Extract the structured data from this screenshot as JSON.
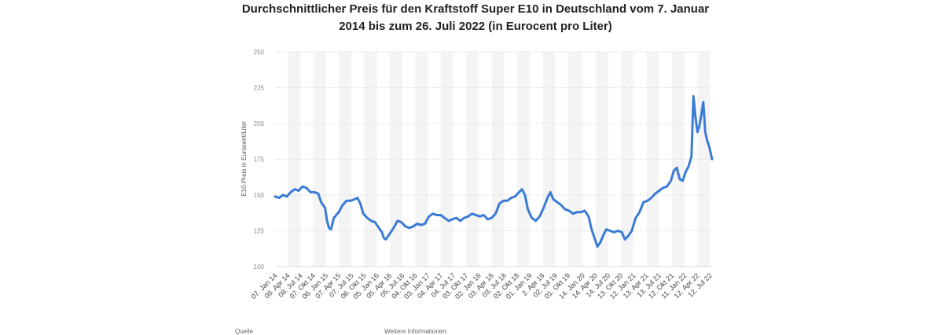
{
  "chart_data": {
    "type": "line",
    "title_line1": "Durchschnittlicher Preis für den Kraftstoff Super E10 in Deutschland vom 7. Januar",
    "title_line2": "2014 bis zum 26. Juli 2022 (in Eurocent pro Liter)",
    "ylabel": "E10-Preis in Eurocent/Liter",
    "xlabel": "",
    "ylim": [
      100,
      250
    ],
    "yticks": [
      100,
      125,
      150,
      175,
      200,
      225,
      250
    ],
    "xlim": [
      "2014-01-07",
      "2022-07-26"
    ],
    "grid": true,
    "xtick_labels": [
      {
        "label": "07. Jan 14",
        "date": "2014-01-07"
      },
      {
        "label": "08. Apr 14",
        "date": "2014-04-08"
      },
      {
        "label": "08. Jul 14",
        "date": "2014-07-08"
      },
      {
        "label": "07. Okt 14",
        "date": "2014-10-07"
      },
      {
        "label": "06. Jan 15",
        "date": "2015-01-06"
      },
      {
        "label": "07. Apr 15",
        "date": "2015-04-07"
      },
      {
        "label": "07. Jul 15",
        "date": "2015-07-07"
      },
      {
        "label": "06. Okt 15",
        "date": "2015-10-06"
      },
      {
        "label": "05. Jan 16",
        "date": "2016-01-05"
      },
      {
        "label": "05. Apr 16",
        "date": "2016-04-05"
      },
      {
        "label": "05. Jul 16",
        "date": "2016-07-05"
      },
      {
        "label": "04. Okt 16",
        "date": "2016-10-04"
      },
      {
        "label": "03. Jan 17",
        "date": "2017-01-03"
      },
      {
        "label": "04. Apr 17",
        "date": "2017-04-04"
      },
      {
        "label": "04. Jul 17",
        "date": "2017-07-04"
      },
      {
        "label": "03. Okt 17",
        "date": "2017-10-03"
      },
      {
        "label": "02. Jan 18",
        "date": "2018-01-02"
      },
      {
        "label": "03. Apr 18",
        "date": "2018-04-03"
      },
      {
        "label": "03. Jul 18",
        "date": "2018-07-03"
      },
      {
        "label": "02. Okt 18",
        "date": "2018-10-02"
      },
      {
        "label": "01. Jan 19",
        "date": "2019-01-01"
      },
      {
        "label": "2. Apr 19",
        "date": "2019-04-02"
      },
      {
        "label": "02. Jul 19",
        "date": "2019-07-02"
      },
      {
        "label": "01. Okt 19",
        "date": "2019-10-01"
      },
      {
        "label": "14. Jan 20",
        "date": "2020-01-14"
      },
      {
        "label": "14. Apr 20",
        "date": "2020-04-14"
      },
      {
        "label": "14. Jul 20",
        "date": "2020-07-14"
      },
      {
        "label": "13. Okt 20",
        "date": "2020-10-13"
      },
      {
        "label": "12. Jan 21",
        "date": "2021-01-12"
      },
      {
        "label": "13. Apr 21",
        "date": "2021-04-13"
      },
      {
        "label": "13. Jul 21",
        "date": "2021-07-13"
      },
      {
        "label": "12. Okt 21",
        "date": "2021-10-12"
      },
      {
        "label": "11. Jan 22",
        "date": "2022-01-11"
      },
      {
        "label": "12. Apr 22",
        "date": "2022-04-12"
      },
      {
        "label": "12. Jul 22",
        "date": "2022-07-12"
      }
    ],
    "series": [
      {
        "color": "#3a7bd5",
        "points": [
          [
            "2014-01-07",
            149
          ],
          [
            "2014-02-04",
            148
          ],
          [
            "2014-03-04",
            150
          ],
          [
            "2014-04-01",
            149
          ],
          [
            "2014-04-29",
            152
          ],
          [
            "2014-05-27",
            154
          ],
          [
            "2014-06-24",
            153
          ],
          [
            "2014-07-22",
            156
          ],
          [
            "2014-08-19",
            155
          ],
          [
            "2014-09-16",
            152
          ],
          [
            "2014-10-14",
            152
          ],
          [
            "2014-11-11",
            151
          ],
          [
            "2014-12-02",
            145
          ],
          [
            "2014-12-30",
            141
          ],
          [
            "2015-01-13",
            132
          ],
          [
            "2015-01-27",
            127
          ],
          [
            "2015-02-10",
            126
          ],
          [
            "2015-03-03",
            134
          ],
          [
            "2015-04-07",
            138
          ],
          [
            "2015-05-05",
            143
          ],
          [
            "2015-06-02",
            146
          ],
          [
            "2015-06-30",
            146
          ],
          [
            "2015-07-28",
            147
          ],
          [
            "2015-08-18",
            148
          ],
          [
            "2015-09-08",
            144
          ],
          [
            "2015-09-29",
            137
          ],
          [
            "2015-10-27",
            134
          ],
          [
            "2015-11-24",
            132
          ],
          [
            "2015-12-22",
            131
          ],
          [
            "2016-01-19",
            127
          ],
          [
            "2016-02-09",
            124
          ],
          [
            "2016-02-23",
            120
          ],
          [
            "2016-03-08",
            119
          ],
          [
            "2016-04-05",
            123
          ],
          [
            "2016-05-03",
            127
          ],
          [
            "2016-05-31",
            132
          ],
          [
            "2016-06-28",
            131
          ],
          [
            "2016-07-26",
            128
          ],
          [
            "2016-08-23",
            127
          ],
          [
            "2016-09-20",
            128
          ],
          [
            "2016-10-18",
            130
          ],
          [
            "2016-11-15",
            129
          ],
          [
            "2016-12-13",
            130
          ],
          [
            "2017-01-10",
            135
          ],
          [
            "2017-02-07",
            137
          ],
          [
            "2017-03-07",
            136
          ],
          [
            "2017-04-04",
            136
          ],
          [
            "2017-05-02",
            134
          ],
          [
            "2017-05-30",
            132
          ],
          [
            "2017-06-27",
            133
          ],
          [
            "2017-07-25",
            134
          ],
          [
            "2017-08-22",
            132
          ],
          [
            "2017-09-19",
            134
          ],
          [
            "2017-10-17",
            135
          ],
          [
            "2017-11-14",
            137
          ],
          [
            "2017-12-12",
            136
          ],
          [
            "2018-01-09",
            135
          ],
          [
            "2018-02-06",
            136
          ],
          [
            "2018-03-06",
            133
          ],
          [
            "2018-04-03",
            134
          ],
          [
            "2018-05-01",
            137
          ],
          [
            "2018-05-29",
            144
          ],
          [
            "2018-06-26",
            146
          ],
          [
            "2018-07-24",
            146
          ],
          [
            "2018-08-21",
            148
          ],
          [
            "2018-09-18",
            149
          ],
          [
            "2018-10-16",
            152
          ],
          [
            "2018-11-06",
            154
          ],
          [
            "2018-11-27",
            150
          ],
          [
            "2018-12-18",
            140
          ],
          [
            "2019-01-15",
            134
          ],
          [
            "2019-02-12",
            132
          ],
          [
            "2019-03-12",
            135
          ],
          [
            "2019-04-09",
            141
          ],
          [
            "2019-05-07",
            148
          ],
          [
            "2019-05-28",
            152
          ],
          [
            "2019-06-18",
            147
          ],
          [
            "2019-07-16",
            145
          ],
          [
            "2019-08-13",
            143
          ],
          [
            "2019-09-10",
            140
          ],
          [
            "2019-10-08",
            139
          ],
          [
            "2019-11-05",
            137
          ],
          [
            "2019-12-03",
            138
          ],
          [
            "2019-12-31",
            138
          ],
          [
            "2020-01-28",
            139
          ],
          [
            "2020-02-25",
            135
          ],
          [
            "2020-03-17",
            126
          ],
          [
            "2020-04-07",
            120
          ],
          [
            "2020-04-28",
            114
          ],
          [
            "2020-05-19",
            117
          ],
          [
            "2020-06-09",
            122
          ],
          [
            "2020-06-30",
            126
          ],
          [
            "2020-07-28",
            125
          ],
          [
            "2020-08-25",
            124
          ],
          [
            "2020-09-22",
            125
          ],
          [
            "2020-10-20",
            124
          ],
          [
            "2020-11-10",
            119
          ],
          [
            "2020-12-01",
            121
          ],
          [
            "2020-12-29",
            125
          ],
          [
            "2021-01-26",
            134
          ],
          [
            "2021-02-23",
            138
          ],
          [
            "2021-03-23",
            145
          ],
          [
            "2021-04-20",
            146
          ],
          [
            "2021-05-18",
            148
          ],
          [
            "2021-06-15",
            151
          ],
          [
            "2021-07-13",
            153
          ],
          [
            "2021-08-10",
            155
          ],
          [
            "2021-09-07",
            156
          ],
          [
            "2021-10-05",
            160
          ],
          [
            "2021-10-26",
            167
          ],
          [
            "2021-11-16",
            169
          ],
          [
            "2021-12-07",
            161
          ],
          [
            "2021-12-28",
            160
          ],
          [
            "2022-01-18",
            166
          ],
          [
            "2022-02-08",
            170
          ],
          [
            "2022-03-01",
            177
          ],
          [
            "2022-03-15",
            219
          ],
          [
            "2022-03-29",
            205
          ],
          [
            "2022-04-12",
            194
          ],
          [
            "2022-04-26",
            198
          ],
          [
            "2022-05-10",
            206
          ],
          [
            "2022-05-24",
            215
          ],
          [
            "2022-06-07",
            194
          ],
          [
            "2022-06-21",
            188
          ],
          [
            "2022-07-05",
            184
          ],
          [
            "2022-07-26",
            175
          ]
        ]
      }
    ]
  },
  "footer": {
    "left": "Quelle",
    "right": "Weitere Informationen:"
  }
}
